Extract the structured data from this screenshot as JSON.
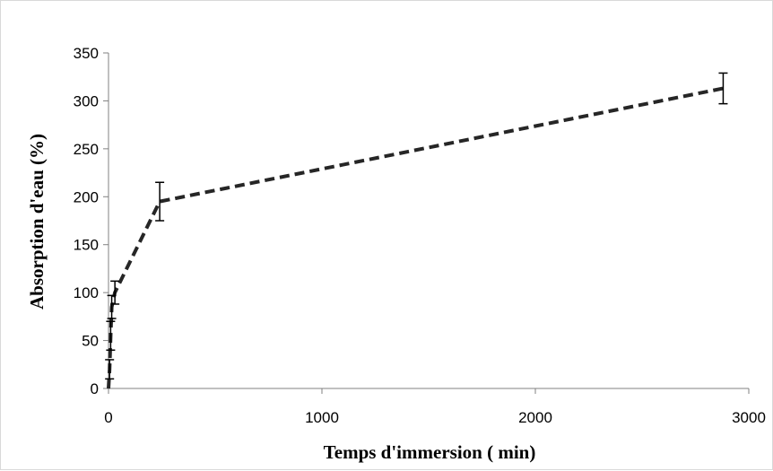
{
  "chart_data": {
    "type": "line",
    "title": "",
    "xlabel": "Temps d'immersion ( min)",
    "ylabel": "Absorption d'eau (%)",
    "xlim": [
      0,
      3000
    ],
    "ylim": [
      0,
      350
    ],
    "x_ticks": [
      0,
      1000,
      2000,
      3000
    ],
    "x_tick_labels": [
      "0",
      "1000",
      "2000",
      "3000"
    ],
    "y_ticks": [
      0,
      50,
      100,
      150,
      200,
      250,
      300,
      350
    ],
    "y_tick_labels": [
      "0",
      "50",
      "100",
      "150",
      "200",
      "250",
      "300",
      "350"
    ],
    "grid": false,
    "legend": "none",
    "series": [
      {
        "line_style": "dashed",
        "color": "#262626",
        "points": [
          {
            "x": 0,
            "y": 0,
            "err": 0
          },
          {
            "x": 5,
            "y": 20,
            "err": 10
          },
          {
            "x": 10,
            "y": 55,
            "err": 15
          },
          {
            "x": 15,
            "y": 85,
            "err": 12
          },
          {
            "x": 30,
            "y": 100,
            "err": 12
          },
          {
            "x": 240,
            "y": 195,
            "err": 20
          },
          {
            "x": 2880,
            "y": 313,
            "err": 16
          }
        ]
      }
    ]
  }
}
